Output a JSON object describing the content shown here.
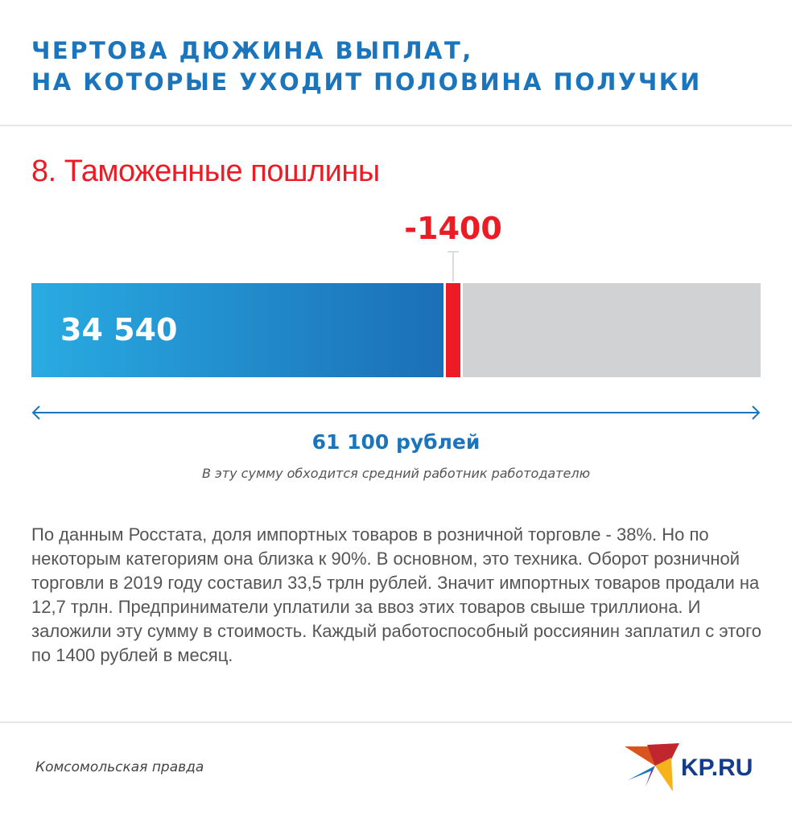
{
  "header": {
    "title_line1": "ЧЕРТОВА ДЮЖИНА ВЫПЛАТ,",
    "title_line2": "НА КОТОРЫЕ УХОДИТ ПОЛОВИНА ПОЛУЧКИ"
  },
  "chart_data": {
    "type": "bar",
    "title": "8. Таможенные пошлины",
    "orientation": "horizontal-stacked",
    "total": 61100,
    "total_label": "61 100 рублей",
    "total_caption": "В эту сумму обходится средний работник работодателю",
    "segments": [
      {
        "name": "remaining",
        "value": 34540,
        "label": "34 540",
        "color": "#1b75bc"
      },
      {
        "name": "customs-duties",
        "value": 1400,
        "label": "-1400",
        "color": "#ed1c24"
      },
      {
        "name": "other",
        "value": 25160,
        "color": "#d1d2d4"
      }
    ]
  },
  "body": {
    "text": "По данным Росстата, доля импортных товаров в розничной торговле - 38%. Но по некоторым категориям она близка к 90%. В основном, это техника. Оборот розничной торговли в 2019 году составил 33,5 трлн рублей. Значит импортных товаров продали на 12,7 трлн. Предприниматели уплатили за ввоз этих товаров свыше триллиона. И заложили эту сумму в стоимость. Каждый работоспособный россиянин заплатил с этого по 1400 рублей в месяц."
  },
  "footer": {
    "source": "Комсомольская правда",
    "logo_text": "KP.RU"
  }
}
